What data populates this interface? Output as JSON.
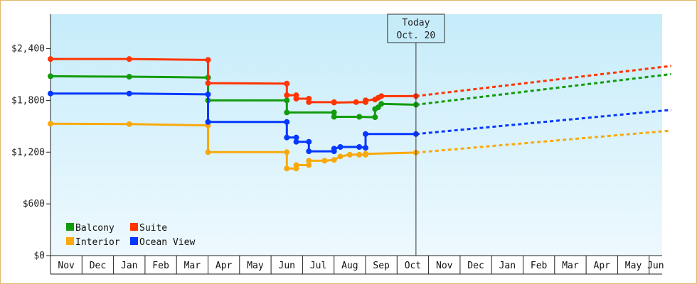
{
  "chart_data": {
    "type": "line",
    "title": "",
    "xlabel": "",
    "ylabel": "",
    "ylim": [
      0,
      2800
    ],
    "yticks": [
      {
        "value": 0,
        "label": "$0"
      },
      {
        "value": 600,
        "label": "$600"
      },
      {
        "value": 1200,
        "label": "$1,200"
      },
      {
        "value": 1800,
        "label": "$1,800"
      },
      {
        "value": 2400,
        "label": "$2,400"
      }
    ],
    "months": [
      "Nov",
      "Dec",
      "Jan",
      "Feb",
      "Mar",
      "Apr",
      "May",
      "Jun",
      "Jul",
      "Aug",
      "Sep",
      "Oct",
      "Nov",
      "Dec",
      "Jan",
      "Feb",
      "Mar",
      "Apr",
      "May",
      "Jun"
    ],
    "x_unit": "month index from start of Nov (0 = Nov 1)",
    "today": {
      "line1": "Today",
      "line2": "Oct. 20",
      "x": 11.6
    },
    "legend": {
      "placement": "bottom-left"
    },
    "grid": false,
    "series": [
      {
        "name": "Balcony",
        "color": "#129b0b",
        "points": [
          [
            0,
            2080
          ],
          [
            2.5,
            2075
          ],
          [
            5.0,
            2065
          ],
          [
            5.0,
            1800
          ],
          [
            7.5,
            1800
          ],
          [
            7.5,
            1660
          ],
          [
            9.0,
            1660
          ],
          [
            9.0,
            1610
          ],
          [
            9.8,
            1610
          ],
          [
            10.3,
            1605
          ],
          [
            10.3,
            1700
          ],
          [
            10.4,
            1720
          ],
          [
            10.5,
            1760
          ],
          [
            11.6,
            1750
          ]
        ],
        "forecast": [
          [
            11.6,
            1750
          ],
          [
            19.7,
            2105
          ]
        ]
      },
      {
        "name": "Suite",
        "color": "#ff3400",
        "points": [
          [
            0,
            2280
          ],
          [
            2.5,
            2280
          ],
          [
            5.0,
            2270
          ],
          [
            5.0,
            2000
          ],
          [
            7.5,
            1995
          ],
          [
            7.5,
            1860
          ],
          [
            7.8,
            1860
          ],
          [
            7.8,
            1820
          ],
          [
            8.2,
            1820
          ],
          [
            8.2,
            1780
          ],
          [
            9.0,
            1780
          ],
          [
            9.0,
            1775
          ],
          [
            9.7,
            1780
          ],
          [
            10.0,
            1780
          ],
          [
            10.0,
            1800
          ],
          [
            10.3,
            1810
          ],
          [
            10.4,
            1830
          ],
          [
            10.5,
            1850
          ],
          [
            11.6,
            1850
          ]
        ],
        "forecast": [
          [
            11.6,
            1850
          ],
          [
            19.7,
            2200
          ]
        ]
      },
      {
        "name": "Interior",
        "color": "#f9a90d",
        "points": [
          [
            0,
            1530
          ],
          [
            2.5,
            1525
          ],
          [
            5.0,
            1510
          ],
          [
            5.0,
            1200
          ],
          [
            7.5,
            1200
          ],
          [
            7.5,
            1010
          ],
          [
            7.8,
            1010
          ],
          [
            7.8,
            1050
          ],
          [
            8.2,
            1050
          ],
          [
            8.2,
            1100
          ],
          [
            8.7,
            1100
          ],
          [
            9.0,
            1110
          ],
          [
            9.2,
            1150
          ],
          [
            9.5,
            1170
          ],
          [
            9.8,
            1170
          ],
          [
            10.0,
            1170
          ],
          [
            10.0,
            1180
          ],
          [
            11.6,
            1195
          ]
        ],
        "forecast": [
          [
            11.6,
            1195
          ],
          [
            19.7,
            1450
          ]
        ]
      },
      {
        "name": "Ocean View",
        "color": "#0537ff",
        "points": [
          [
            0,
            1880
          ],
          [
            2.5,
            1880
          ],
          [
            5.0,
            1870
          ],
          [
            5.0,
            1550
          ],
          [
            7.5,
            1550
          ],
          [
            7.5,
            1370
          ],
          [
            7.8,
            1370
          ],
          [
            7.8,
            1320
          ],
          [
            8.2,
            1320
          ],
          [
            8.2,
            1210
          ],
          [
            9.0,
            1210
          ],
          [
            9.0,
            1240
          ],
          [
            9.2,
            1260
          ],
          [
            9.8,
            1260
          ],
          [
            10.0,
            1250
          ],
          [
            10.0,
            1410
          ],
          [
            11.6,
            1410
          ]
        ],
        "forecast": [
          [
            11.6,
            1410
          ],
          [
            19.7,
            1690
          ]
        ]
      }
    ]
  }
}
